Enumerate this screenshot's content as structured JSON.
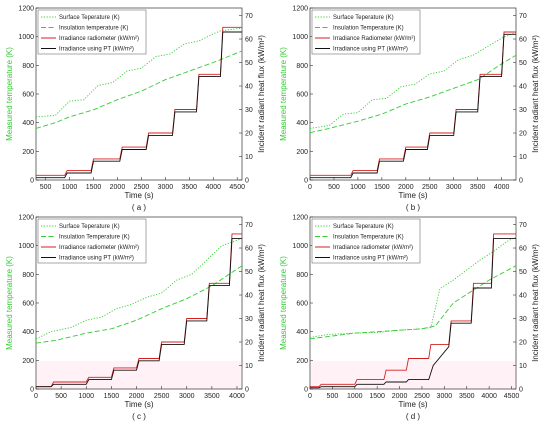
{
  "colors": {
    "surface": "#33cc33",
    "insulation": "#33cc33",
    "radiometer": "#d62020",
    "pt": "#111111",
    "left_axis": "#33cc33",
    "pink_band": "#ffd6e6"
  },
  "chart_data": [
    {
      "type": "line",
      "subplot_label": "( a )",
      "xlabel": "Time (s)",
      "ylabel_left": "Measured temperature (K)",
      "ylabel_right": "Incident radiant heat flux (kW/m²)",
      "xlim": [
        300,
        4600
      ],
      "xticks": [
        500,
        1000,
        1500,
        2000,
        2500,
        3000,
        3500,
        4000,
        4500
      ],
      "ylim_left": [
        0,
        1200
      ],
      "yticks_left": [
        0,
        200,
        400,
        600,
        800,
        1000,
        1200
      ],
      "ylim_right": [
        0,
        73.2
      ],
      "yticks_right": [
        0,
        10,
        20,
        30,
        40,
        50,
        60,
        70
      ],
      "legend": [
        "Surface Teperature (K)",
        "Insulation temperature (K)",
        "Irradiance radiometer (kW/m²)",
        "Irradiance using PT (kW/m²)"
      ],
      "legend_position": "top-left",
      "series": [
        {
          "name": "Surface Teperature (K)",
          "style": "dotted",
          "axis": "left",
          "x": [
            300,
            700,
            1000,
            1300,
            1600,
            1900,
            2200,
            2500,
            2800,
            3100,
            3400,
            3700,
            4000,
            4150,
            4600
          ],
          "y": [
            440,
            450,
            550,
            560,
            660,
            680,
            760,
            780,
            860,
            880,
            950,
            970,
            1020,
            1040,
            1060
          ]
        },
        {
          "name": "Insulation temperature (K)",
          "style": "dashed",
          "axis": "left",
          "x": [
            300,
            700,
            1000,
            1500,
            2000,
            2500,
            3000,
            3500,
            4000,
            4600
          ],
          "y": [
            360,
            400,
            440,
            490,
            560,
            620,
            700,
            760,
            820,
            900
          ]
        },
        {
          "name": "Irradiance radiometer (kW/m²)",
          "style": "solid",
          "axis": "right",
          "x": [
            300,
            900,
            950,
            1450,
            1500,
            2050,
            2100,
            2600,
            2650,
            3150,
            3200,
            3650,
            3700,
            4150,
            4200,
            4600
          ],
          "y": [
            2,
            2,
            4,
            4,
            9,
            9,
            14,
            14,
            20,
            20,
            30,
            30,
            45,
            45,
            65,
            65
          ]
        },
        {
          "name": "Irradiance using PT (kW/m²)",
          "style": "solid",
          "axis": "right",
          "x": [
            300,
            900,
            950,
            1450,
            1500,
            2050,
            2100,
            2600,
            2650,
            3150,
            3200,
            3650,
            3700,
            4150,
            4200,
            4600
          ],
          "y": [
            1,
            1,
            3,
            3,
            8,
            8,
            13,
            13,
            19,
            19,
            29,
            29,
            44,
            44,
            63,
            63
          ]
        }
      ]
    },
    {
      "type": "line",
      "subplot_label": "( b )",
      "xlabel": "Time (s)",
      "ylabel_left": "Measured temperature (K)",
      "ylabel_right": "Incident radiant heat flux (kW/m²)",
      "xlim": [
        0,
        4300
      ],
      "xticks": [
        0,
        500,
        1000,
        1500,
        2000,
        2500,
        3000,
        3500,
        4000
      ],
      "ylim_left": [
        0,
        1200
      ],
      "yticks_left": [
        0,
        200,
        400,
        600,
        800,
        1000,
        1200
      ],
      "ylim_right": [
        0,
        73.2
      ],
      "yticks_right": [
        0,
        10,
        20,
        30,
        40,
        50,
        60,
        70
      ],
      "legend": [
        "Surface Teperature (K)",
        "Insulation Temperature (K)",
        "Irradiance Radiometer (kW/m²)",
        "Irradiance using PT (kW/m²)"
      ],
      "legend_position": "top-left",
      "series": [
        {
          "name": "Surface Teperature (K)",
          "style": "dotted",
          "axis": "left",
          "x": [
            0,
            400,
            700,
            1000,
            1300,
            1600,
            1900,
            2200,
            2500,
            2800,
            3100,
            3400,
            3700,
            4000,
            4300
          ],
          "y": [
            360,
            380,
            460,
            470,
            560,
            570,
            650,
            670,
            740,
            760,
            840,
            870,
            930,
            990,
            1030
          ]
        },
        {
          "name": "Insulation Temperature (K)",
          "style": "dashed",
          "axis": "left",
          "x": [
            0,
            400,
            1000,
            1500,
            2000,
            2500,
            3000,
            3500,
            4000,
            4300
          ],
          "y": [
            330,
            360,
            410,
            460,
            530,
            580,
            640,
            700,
            810,
            870
          ]
        },
        {
          "name": "Irradiance Radiometer (kW/m²)",
          "style": "solid",
          "axis": "right",
          "x": [
            0,
            850,
            900,
            1400,
            1450,
            1950,
            2000,
            2450,
            2500,
            3000,
            3050,
            3500,
            3550,
            4000,
            4050,
            4300
          ],
          "y": [
            2,
            2,
            4,
            4,
            9,
            9,
            14,
            14,
            20,
            20,
            30,
            30,
            45,
            45,
            63,
            63
          ]
        },
        {
          "name": "Irradiance using PT (kW/m²)",
          "style": "solid",
          "axis": "right",
          "x": [
            0,
            850,
            900,
            1400,
            1450,
            1950,
            2000,
            2450,
            2500,
            3000,
            3050,
            3500,
            3550,
            4000,
            4050,
            4300
          ],
          "y": [
            1,
            1,
            3,
            3,
            8,
            8,
            13,
            13,
            19,
            19,
            29,
            29,
            44,
            44,
            62,
            62
          ]
        }
      ]
    },
    {
      "type": "line",
      "subplot_label": "( c )",
      "xlabel": "Time (s)",
      "ylabel_left": "Measured temperature (K)",
      "ylabel_right": "Incident radiant heat flux (kW/m²)",
      "xlim": [
        0,
        4100
      ],
      "xticks": [
        0,
        500,
        1000,
        1500,
        2000,
        2500,
        3000,
        3500,
        4000
      ],
      "ylim_left": [
        0,
        1200
      ],
      "yticks_left": [
        0,
        200,
        400,
        600,
        800,
        1000,
        1200
      ],
      "ylim_right": [
        0,
        73.2
      ],
      "yticks_right": [
        0,
        10,
        20,
        30,
        40,
        50,
        60,
        70
      ],
      "legend": [
        "Surface Teperature (K)",
        "Insulation Temperature (K)",
        "Irradiance radiometer (kW/m²)",
        "Irradiance using PT (kW/m²)"
      ],
      "legend_position": "top-left",
      "series": [
        {
          "name": "Surface Teperature (K)",
          "style": "dotted",
          "axis": "left",
          "x": [
            0,
            300,
            700,
            1000,
            1300,
            1600,
            1900,
            2200,
            2500,
            2800,
            3100,
            3400,
            3700,
            4100
          ],
          "y": [
            350,
            400,
            430,
            480,
            500,
            560,
            590,
            640,
            670,
            760,
            800,
            900,
            1000,
            1050
          ]
        },
        {
          "name": "Insulation Temperature (K)",
          "style": "dashed",
          "axis": "left",
          "x": [
            0,
            400,
            1000,
            1500,
            2000,
            2500,
            3000,
            3500,
            4100
          ],
          "y": [
            320,
            340,
            390,
            420,
            480,
            560,
            630,
            720,
            860
          ]
        },
        {
          "name": "Irradiance radiometer (kW/m²)",
          "style": "solid",
          "axis": "right",
          "x": [
            0,
            300,
            350,
            1000,
            1050,
            1500,
            1550,
            2000,
            2050,
            2450,
            2500,
            2950,
            3000,
            3400,
            3450,
            3850,
            3900,
            4100
          ],
          "y": [
            1,
            1,
            3,
            3,
            5,
            5,
            9,
            9,
            13,
            13,
            20,
            20,
            30,
            30,
            45,
            45,
            66,
            66
          ]
        },
        {
          "name": "Irradiance using PT (kW/m²)",
          "style": "solid",
          "axis": "right",
          "x": [
            0,
            300,
            350,
            1000,
            1050,
            1500,
            1550,
            2000,
            2050,
            2450,
            2500,
            2950,
            3000,
            3400,
            3450,
            3850,
            3900,
            4100
          ],
          "y": [
            1,
            1,
            2,
            2,
            4,
            4,
            8,
            8,
            12,
            12,
            19,
            19,
            29,
            29,
            44,
            44,
            64,
            64
          ]
        }
      ]
    },
    {
      "type": "line",
      "subplot_label": "( d )",
      "xlabel": "Time (s)",
      "ylabel_left": "Measured temperature (K)",
      "ylabel_right": "Incident radiant heat flux (kW/m²)",
      "xlim": [
        0,
        4600
      ],
      "xticks": [
        0,
        500,
        1000,
        1500,
        2000,
        2500,
        3000,
        3500,
        4000,
        4500
      ],
      "ylim_left": [
        0,
        1200
      ],
      "yticks_left": [
        0,
        200,
        400,
        600,
        800,
        1000,
        1200
      ],
      "ylim_right": [
        0,
        73.2
      ],
      "yticks_right": [
        0,
        10,
        20,
        30,
        40,
        50,
        60,
        70
      ],
      "legend": [
        "Surface Teperature (K)",
        "Insulation Temperature (K)",
        "Irradiance radiometer (kW/m²)",
        "Irradiance using PT (kW/m²)"
      ],
      "legend_position": "top-left",
      "series": [
        {
          "name": "Surface Teperature (K)",
          "style": "dotted",
          "axis": "left",
          "x": [
            0,
            400,
            1000,
            1500,
            2000,
            2500,
            2700,
            2900,
            3200,
            3500,
            3800,
            4100,
            4400,
            4600
          ],
          "y": [
            360,
            380,
            390,
            395,
            410,
            420,
            430,
            700,
            760,
            830,
            900,
            960,
            1030,
            1060
          ]
        },
        {
          "name": "Insulation Temperature (K)",
          "style": "dashed",
          "axis": "left",
          "x": [
            0,
            500,
            1000,
            1500,
            2000,
            2500,
            2800,
            3200,
            3600,
            4000,
            4600
          ],
          "y": [
            350,
            370,
            390,
            400,
            410,
            420,
            440,
            600,
            680,
            760,
            860
          ]
        },
        {
          "name": "Irradiance radiometer (kW/m²)",
          "style": "solid",
          "axis": "right",
          "x": [
            0,
            200,
            250,
            1000,
            1050,
            1650,
            1700,
            2150,
            2200,
            2650,
            2700,
            3100,
            3150,
            3600,
            3650,
            4050,
            4100,
            4600
          ],
          "y": [
            1,
            1,
            2,
            2,
            4,
            4,
            8,
            8,
            13,
            13,
            19,
            19,
            29,
            29,
            45,
            45,
            66,
            66
          ]
        },
        {
          "name": "Irradiance using PT (kW/m²)",
          "style": "solid",
          "axis": "right",
          "x": [
            0,
            200,
            250,
            1000,
            1050,
            1650,
            1700,
            2150,
            2200,
            2650,
            2750,
            3100,
            3150,
            3600,
            3650,
            4050,
            4100,
            4600
          ],
          "y": [
            0.5,
            0.5,
            1,
            1,
            2,
            2,
            3,
            3,
            4,
            4,
            10,
            18,
            28,
            28,
            43,
            43,
            64,
            64
          ]
        }
      ]
    }
  ]
}
